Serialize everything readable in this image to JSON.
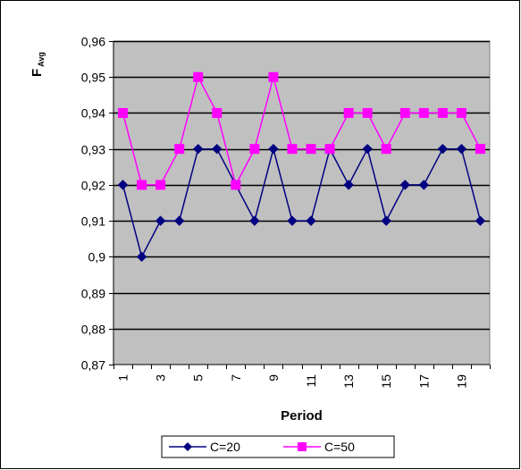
{
  "chart_data": {
    "type": "line",
    "title": "",
    "xlabel": "Period",
    "ylabel": "F",
    "ylabel_subscript": "Avg",
    "ylim": [
      0.87,
      0.96
    ],
    "y_tick_values": [
      0.87,
      0.88,
      0.89,
      0.9,
      0.91,
      0.92,
      0.93,
      0.94,
      0.95,
      0.96
    ],
    "y_tick_labels": [
      "0,87",
      "0,88",
      "0,89",
      "0,9",
      "0,91",
      "0,92",
      "0,93",
      "0,94",
      "0,95",
      "0,96"
    ],
    "x": [
      1,
      2,
      3,
      4,
      5,
      6,
      7,
      8,
      9,
      10,
      11,
      12,
      13,
      14,
      15,
      16,
      17,
      18,
      19,
      20
    ],
    "x_tick_labels": [
      "1",
      "3",
      "5",
      "7",
      "9",
      "11",
      "13",
      "15",
      "17",
      "19"
    ],
    "grid": true,
    "legend_position": "bottom",
    "plot_background": "#c0c0c0",
    "series": [
      {
        "name": "C=20",
        "color": "#000080",
        "marker": "diamond",
        "values": [
          0.92,
          0.9,
          0.91,
          0.91,
          0.93,
          0.93,
          0.92,
          0.91,
          0.93,
          0.91,
          0.91,
          0.93,
          0.92,
          0.93,
          0.91,
          0.92,
          0.92,
          0.93,
          0.93,
          0.91
        ]
      },
      {
        "name": "C=50",
        "color": "#ff00ff",
        "marker": "square",
        "values": [
          0.94,
          0.92,
          0.92,
          0.93,
          0.95,
          0.94,
          0.92,
          0.93,
          0.95,
          0.93,
          0.93,
          0.93,
          0.94,
          0.94,
          0.93,
          0.94,
          0.94,
          0.94,
          0.94,
          0.93
        ]
      }
    ]
  }
}
